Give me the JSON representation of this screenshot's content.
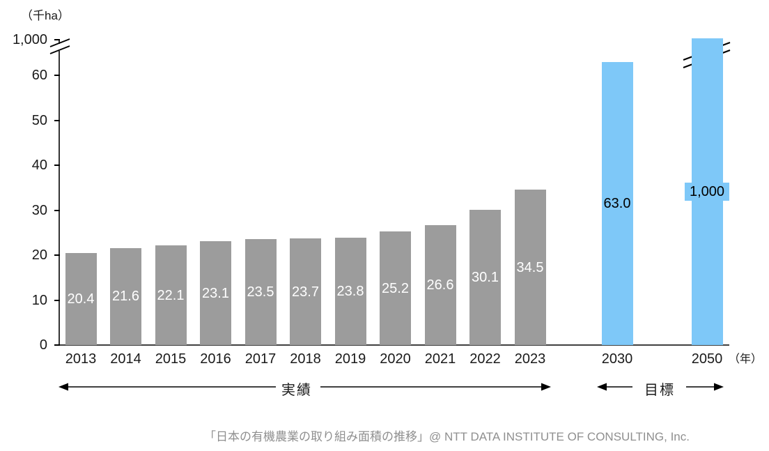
{
  "figure": {
    "y_unit_label": "（千ha）",
    "x_unit_label": "（年）",
    "caption": "「日本の有機農業の取り組み面積の推移」@ NTT DATA INSTITUTE OF CONSULTING, Inc."
  },
  "chart_data": {
    "type": "bar",
    "title": "日本の有機農業の取り組み面積の推移",
    "ylabel": "千ha",
    "xlabel": "年",
    "y_ticks": [
      0,
      10,
      20,
      30,
      40,
      50,
      60
    ],
    "y_axis_break": {
      "between": [
        60,
        1000
      ],
      "top_tick_label": "1,000"
    },
    "grid": "off",
    "series": [
      {
        "name": "実績",
        "categories": [
          "2013",
          "2014",
          "2015",
          "2016",
          "2017",
          "2018",
          "2019",
          "2020",
          "2021",
          "2022",
          "2023"
        ],
        "values": [
          20.4,
          21.6,
          22.1,
          23.1,
          23.5,
          23.7,
          23.8,
          25.2,
          26.6,
          30.1,
          34.5
        ],
        "value_labels": [
          "20.4",
          "21.6",
          "22.1",
          "23.1",
          "23.5",
          "23.7",
          "23.8",
          "25.2",
          "26.6",
          "30.1",
          "34.5"
        ],
        "bar_color": "#9c9c9c",
        "value_label_color": "#ffffff"
      },
      {
        "name": "目標",
        "categories": [
          "2030",
          "2050"
        ],
        "values": [
          63.0,
          1000
        ],
        "value_labels": [
          "63.0",
          "1,000"
        ],
        "bar_color": "#7ec8f8",
        "value_label_color": "#000000"
      }
    ],
    "annotations": {
      "actual_range_label": "実績",
      "target_range_label": "目標"
    },
    "colors": {
      "actual_bar": "#9c9c9c",
      "target_bar": "#7ec8f8",
      "axis": "#000000",
      "caption_text": "#8f8f8f"
    }
  }
}
